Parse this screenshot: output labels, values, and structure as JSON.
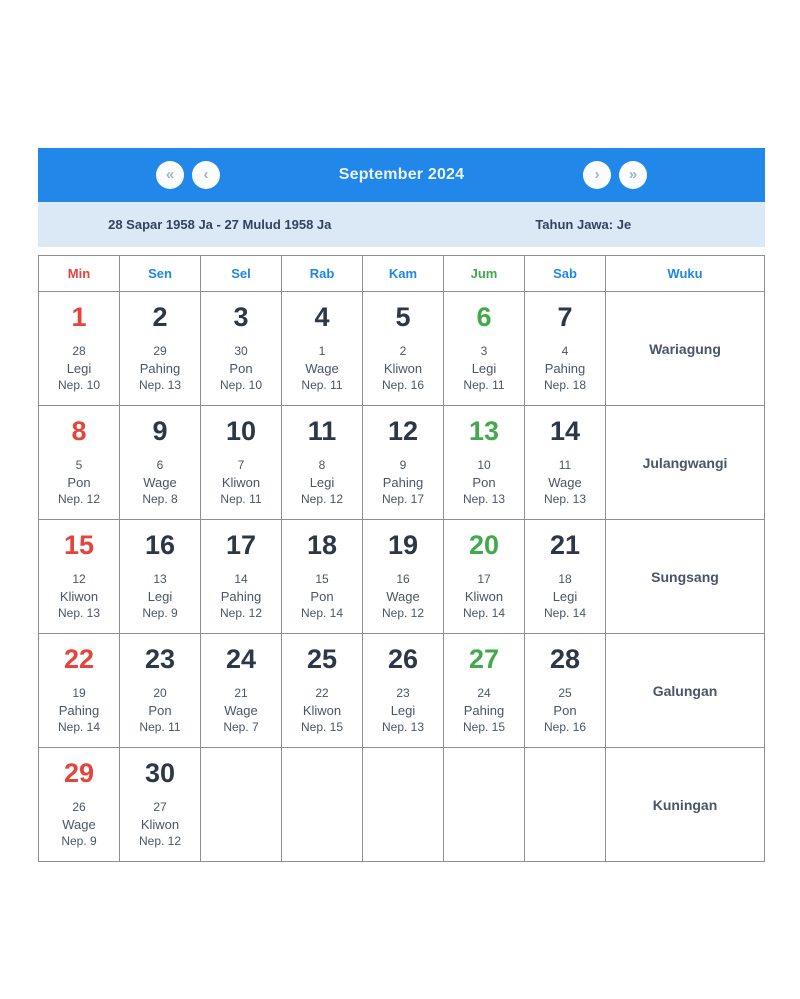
{
  "header": {
    "title": "September 2024",
    "nav": {
      "prev_year_label": "«",
      "prev_month_label": "‹",
      "next_month_label": "›",
      "next_year_label": "»"
    }
  },
  "subheader": {
    "javanese_range": "28 Sapar 1958 Ja - 27 Mulud 1958 Ja",
    "tahun_jawa": "Tahun Jawa: Je"
  },
  "colors": {
    "header_blue": "#2187e8",
    "subheader_bg": "#dbe9f7",
    "sunday_red": "#e5443c",
    "friday_green": "#42a94c",
    "weekday_blue": "#1e88e5",
    "day_dark": "#2d3748",
    "subtext_slate": "#4a5568",
    "border_gray": "#8f8f8f"
  },
  "table": {
    "columns": [
      {
        "label": "Min",
        "color": "#e5443c"
      },
      {
        "label": "Sen",
        "color": "#1e88e5"
      },
      {
        "label": "Sel",
        "color": "#1e88e5"
      },
      {
        "label": "Rab",
        "color": "#1e88e5"
      },
      {
        "label": "Kam",
        "color": "#1e88e5"
      },
      {
        "label": "Jum",
        "color": "#42a94c"
      },
      {
        "label": "Sab",
        "color": "#1e88e5"
      },
      {
        "label": "Wuku",
        "color": "#1e88e5"
      }
    ],
    "weeks": [
      {
        "wuku": "Wariagung",
        "days": [
          {
            "date": "1",
            "jav_date": "28",
            "pasaran": "Legi",
            "neptu": "Nep. 10",
            "tone": "red"
          },
          {
            "date": "2",
            "jav_date": "29",
            "pasaran": "Pahing",
            "neptu": "Nep. 13",
            "tone": "dark"
          },
          {
            "date": "3",
            "jav_date": "30",
            "pasaran": "Pon",
            "neptu": "Nep. 10",
            "tone": "dark"
          },
          {
            "date": "4",
            "jav_date": "1",
            "pasaran": "Wage",
            "neptu": "Nep. 11",
            "tone": "dark"
          },
          {
            "date": "5",
            "jav_date": "2",
            "pasaran": "Kliwon",
            "neptu": "Nep. 16",
            "tone": "dark"
          },
          {
            "date": "6",
            "jav_date": "3",
            "pasaran": "Legi",
            "neptu": "Nep. 11",
            "tone": "green"
          },
          {
            "date": "7",
            "jav_date": "4",
            "pasaran": "Pahing",
            "neptu": "Nep. 18",
            "tone": "dark"
          }
        ]
      },
      {
        "wuku": "Julangwangi",
        "days": [
          {
            "date": "8",
            "jav_date": "5",
            "pasaran": "Pon",
            "neptu": "Nep. 12",
            "tone": "red"
          },
          {
            "date": "9",
            "jav_date": "6",
            "pasaran": "Wage",
            "neptu": "Nep. 8",
            "tone": "dark"
          },
          {
            "date": "10",
            "jav_date": "7",
            "pasaran": "Kliwon",
            "neptu": "Nep. 11",
            "tone": "dark"
          },
          {
            "date": "11",
            "jav_date": "8",
            "pasaran": "Legi",
            "neptu": "Nep. 12",
            "tone": "dark"
          },
          {
            "date": "12",
            "jav_date": "9",
            "pasaran": "Pahing",
            "neptu": "Nep. 17",
            "tone": "dark"
          },
          {
            "date": "13",
            "jav_date": "10",
            "pasaran": "Pon",
            "neptu": "Nep. 13",
            "tone": "green"
          },
          {
            "date": "14",
            "jav_date": "11",
            "pasaran": "Wage",
            "neptu": "Nep. 13",
            "tone": "dark"
          }
        ]
      },
      {
        "wuku": "Sungsang",
        "days": [
          {
            "date": "15",
            "jav_date": "12",
            "pasaran": "Kliwon",
            "neptu": "Nep. 13",
            "tone": "red"
          },
          {
            "date": "16",
            "jav_date": "13",
            "pasaran": "Legi",
            "neptu": "Nep. 9",
            "tone": "dark"
          },
          {
            "date": "17",
            "jav_date": "14",
            "pasaran": "Pahing",
            "neptu": "Nep. 12",
            "tone": "dark"
          },
          {
            "date": "18",
            "jav_date": "15",
            "pasaran": "Pon",
            "neptu": "Nep. 14",
            "tone": "dark"
          },
          {
            "date": "19",
            "jav_date": "16",
            "pasaran": "Wage",
            "neptu": "Nep. 12",
            "tone": "dark"
          },
          {
            "date": "20",
            "jav_date": "17",
            "pasaran": "Kliwon",
            "neptu": "Nep. 14",
            "tone": "green"
          },
          {
            "date": "21",
            "jav_date": "18",
            "pasaran": "Legi",
            "neptu": "Nep. 14",
            "tone": "dark"
          }
        ]
      },
      {
        "wuku": "Galungan",
        "days": [
          {
            "date": "22",
            "jav_date": "19",
            "pasaran": "Pahing",
            "neptu": "Nep. 14",
            "tone": "red"
          },
          {
            "date": "23",
            "jav_date": "20",
            "pasaran": "Pon",
            "neptu": "Nep. 11",
            "tone": "dark"
          },
          {
            "date": "24",
            "jav_date": "21",
            "pasaran": "Wage",
            "neptu": "Nep. 7",
            "tone": "dark"
          },
          {
            "date": "25",
            "jav_date": "22",
            "pasaran": "Kliwon",
            "neptu": "Nep. 15",
            "tone": "dark"
          },
          {
            "date": "26",
            "jav_date": "23",
            "pasaran": "Legi",
            "neptu": "Nep. 13",
            "tone": "dark"
          },
          {
            "date": "27",
            "jav_date": "24",
            "pasaran": "Pahing",
            "neptu": "Nep. 15",
            "tone": "green"
          },
          {
            "date": "28",
            "jav_date": "25",
            "pasaran": "Pon",
            "neptu": "Nep. 16",
            "tone": "dark"
          }
        ]
      },
      {
        "wuku": "Kuningan",
        "days": [
          {
            "date": "29",
            "jav_date": "26",
            "pasaran": "Wage",
            "neptu": "Nep. 9",
            "tone": "red"
          },
          {
            "date": "30",
            "jav_date": "27",
            "pasaran": "Kliwon",
            "neptu": "Nep. 12",
            "tone": "dark"
          },
          null,
          null,
          null,
          null,
          null
        ]
      }
    ]
  }
}
